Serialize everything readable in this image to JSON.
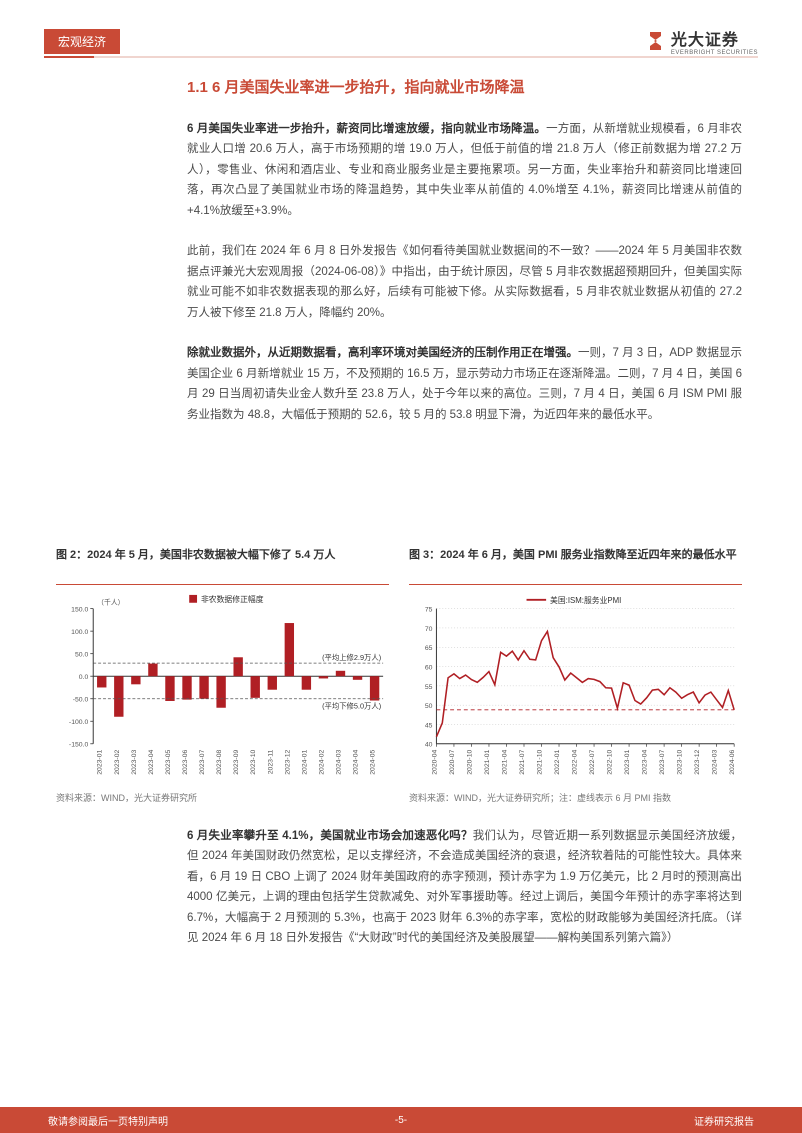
{
  "header": {
    "category": "宏观经济",
    "brand_cn": "光大证券",
    "brand_en": "EVERBRIGHT SECURITIES",
    "brand_color": "#c94a36"
  },
  "section_title": "1.1 6 月美国失业率进一步抬升，指向就业市场降温",
  "para1_bold": "6 月美国失业率进一步抬升，薪资同比增速放缓，指向就业市场降温。",
  "para1_rest": "一方面，从新增就业规模看，6 月非农就业人口增 20.6 万人，高于市场预期的增 19.0 万人，但低于前值的增 21.8 万人（修正前数据为增 27.2 万人），零售业、休闲和酒店业、专业和商业服务业是主要拖累项。另一方面，失业率抬升和薪资同比增速回落，再次凸显了美国就业市场的降温趋势，其中失业率从前值的 4.0%增至 4.1%，薪资同比增速从前值的+4.1%放缓至+3.9%。",
  "para2": "此前，我们在 2024 年 6 月 8 日外发报告《如何看待美国就业数据间的不一致？——2024 年 5 月美国非农数据点评兼光大宏观周报（2024-06-08）》中指出，由于统计原因，尽管 5 月非农数据超预期回升，但美国实际就业可能不如非农数据表现的那么好，后续有可能被下修。从实际数据看，5 月非农就业数据从初值的 27.2 万人被下修至 21.8 万人，降幅约 20%。",
  "para3_bold": "除就业数据外，从近期数据看，高利率环境对美国经济的压制作用正在增强。",
  "para3_rest": "一则，7 月 3 日，ADP 数据显示美国企业 6 月新增就业 15 万，不及预期的 16.5 万，显示劳动力市场正在逐渐降温。二则，7 月 4 日，美国 6 月 29 日当周初请失业金人数升至 23.8 万人，处于今年以来的高位。三则，7 月 4 日，美国 6 月 ISM PMI 服务业指数为 48.8，大幅低于预期的 52.6，较 5 月的 53.8 明显下滑，为近四年来的最低水平。",
  "para4_bold": "6 月失业率攀升至 4.1%，美国就业市场会加速恶化吗？",
  "para4_rest": "我们认为，尽管近期一系列数据显示美国经济放缓，但 2024 年美国财政仍然宽松，足以支撑经济，不会造成美国经济的衰退，经济软着陆的可能性较大。具体来看，6 月 19 日 CBO 上调了 2024 财年美国政府的赤字预测，预计赤字为 1.9 万亿美元，比 2 月时的预测高出 4000 亿美元，上调的理由包括学生贷款减免、对外军事援助等。经过上调后，美国今年预计的赤字率将达到 6.7%，大幅高于 2 月预测的 5.3%，也高于 2023 财年 6.3%的赤字率，宽松的财政能够为美国经济托底。（详见 2024 年 6 月 18 日外发报告《“大财政”时代的美国经济及美股展望——解构美国系列第六篇》）",
  "chart_left": {
    "title": "图 2：2024 年 5 月，美国非农数据被大幅下修了 5.4 万人",
    "source": "资料来源：WIND，光大证券研究所",
    "type": "bar",
    "legend": "非农数据修正幅度",
    "y_unit": "（千人）",
    "ylim": [
      -150,
      150
    ],
    "ytick_step": 50,
    "categories": [
      "2023-01",
      "2023-02",
      "2023-03",
      "2023-04",
      "2023-05",
      "2023-06",
      "2023-07",
      "2023-08",
      "2023-09",
      "2023-10",
      "2023-11",
      "2023-12",
      "2024-01",
      "2024-02",
      "2024-03",
      "2024-04",
      "2024-05"
    ],
    "values": [
      -25,
      -90,
      -18,
      28,
      -55,
      -52,
      -50,
      -70,
      42,
      -48,
      -30,
      118,
      -30,
      -5,
      12,
      -8,
      -54
    ],
    "bar_color": "#b01f24",
    "avg_up_label": "(平均上修2.9万人)",
    "avg_down_label": "(平均下修5.0万人)",
    "avg_up_y": 29,
    "avg_down_y": -50,
    "grid_color": "#9e9e9e",
    "axis_color": "#333333",
    "label_fontsize": 7,
    "background_color": "#ffffff"
  },
  "chart_right": {
    "title": "图 3：2024 年 6 月，美国 PMI 服务业指数降至近四年来的最低水平",
    "source": "资料来源：WIND，光大证券研究所；注：虚线表示 6 月 PMI 指数",
    "type": "line",
    "legend": "美国:ISM:服务业PMI",
    "ylim": [
      40,
      75
    ],
    "ytick_step": 5,
    "categories": [
      "2020-04",
      "2020-07",
      "2020-10",
      "2021-01",
      "2021-04",
      "2021-07",
      "2021-10",
      "2022-01",
      "2022-04",
      "2022-07",
      "2022-10",
      "2023-01",
      "2023-04",
      "2023-07",
      "2023-10",
      "2023-12",
      "2024-03",
      "2024-06"
    ],
    "x_labels": [
      "2020-04",
      "2020-07",
      "2020-10",
      "2021-01",
      "2021-04",
      "2021-07",
      "2021-10",
      "2022-01",
      "2022-04",
      "2022-07",
      "2022-10",
      "2023-01",
      "2023-04",
      "2023-07",
      "2023-10",
      "2023-12",
      "2024-03",
      "2024-06"
    ],
    "values": [
      41.8,
      58.1,
      56.6,
      58.7,
      62.7,
      64.1,
      66.7,
      59.9,
      57.1,
      56.7,
      54.4,
      55.2,
      51.9,
      52.7,
      51.8,
      50.6,
      51.4,
      48.8
    ],
    "dense_values": [
      41.8,
      45.4,
      57.1,
      58.1,
      56.9,
      57.8,
      56.6,
      55.9,
      57.2,
      58.7,
      55.3,
      63.7,
      62.7,
      64.0,
      61.7,
      64.1,
      61.9,
      61.7,
      66.7,
      69.1,
      62.3,
      59.9,
      56.5,
      58.3,
      57.1,
      55.9,
      56.9,
      56.7,
      56.1,
      54.5,
      54.4,
      49.2,
      55.8,
      55.2,
      51.2,
      50.3,
      51.9,
      53.9,
      54.1,
      52.7,
      54.5,
      53.4,
      51.8,
      52.7,
      53.4,
      50.6,
      52.6,
      53.4,
      51.4,
      49.4,
      53.8,
      48.8
    ],
    "line_color": "#b01f24",
    "ref_line_y": 48.8,
    "ref_line_color": "#b01f24",
    "grid_color": "#bdbdbd",
    "axis_color": "#333333",
    "label_fontsize": 7,
    "background_color": "#ffffff"
  },
  "footer": {
    "left": "敬请参阅最后一页特别声明",
    "page": "-5-",
    "right": "证券研究报告"
  }
}
